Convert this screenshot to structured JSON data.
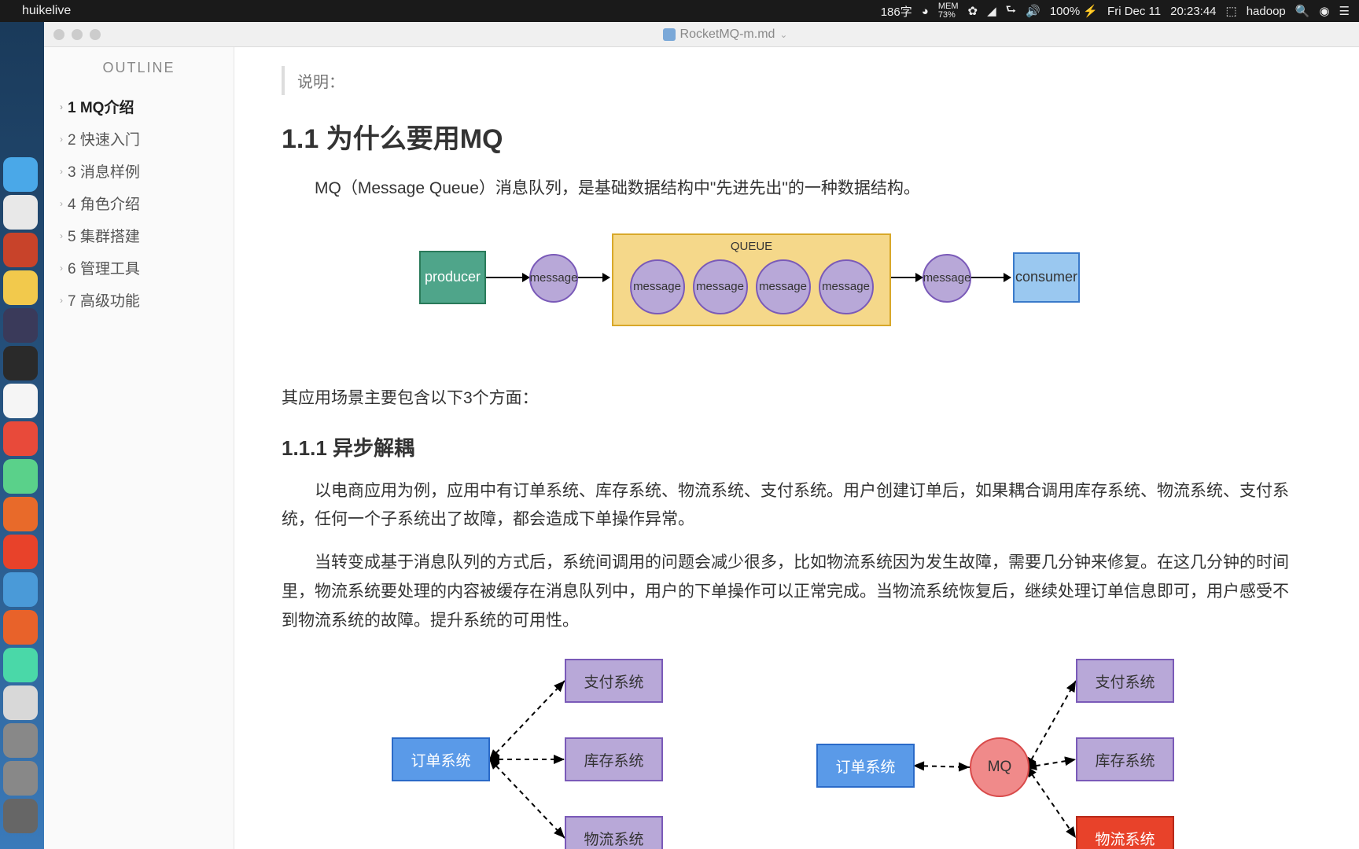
{
  "menubar": {
    "app_name": "huikelive",
    "word_count": "186字",
    "mem_label": "MEM",
    "mem_value": "73%",
    "battery": "100%",
    "date": "Fri Dec 11",
    "time": "20:23:44",
    "user": "hadoop"
  },
  "window": {
    "filename": "RocketMQ-m.md"
  },
  "sidebar": {
    "title": "OUTLINE",
    "items": [
      {
        "label": "1 MQ介绍",
        "active": true
      },
      {
        "label": "2 快速入门",
        "active": false
      },
      {
        "label": "3 消息样例",
        "active": false
      },
      {
        "label": "4 角色介绍",
        "active": false
      },
      {
        "label": "5 集群搭建",
        "active": false
      },
      {
        "label": "6 管理工具",
        "active": false
      },
      {
        "label": "7 高级功能",
        "active": false
      }
    ]
  },
  "content": {
    "quote": "说明：",
    "h2": "1.1 为什么要用MQ",
    "p1": "MQ（Message Queue）消息队列，是基础数据结构中\"先进先出\"的一种数据结构。",
    "p2": "其应用场景主要包含以下3个方面：",
    "h3": "1.1.1 异步解耦",
    "p3": "以电商应用为例，应用中有订单系统、库存系统、物流系统、支付系统。用户创建订单后，如果耦合调用库存系统、物流系统、支付系统，任何一个子系统出了故障，都会造成下单操作异常。",
    "p4": "当转变成基于消息队列的方式后，系统间调用的问题会减少很多，比如物流系统因为发生故障，需要几分钟来修复。在这几分钟的时间里，物流系统要处理的内容被缓存在消息队列中，用户的下单操作可以正常完成。当物流系统恢复后，继续处理订单信息即可，用户感受不到物流系统的故障。提升系统的可用性。"
  },
  "dock_colors": [
    "#4aa8e8",
    "#e8e8e8",
    "#c8432a",
    "#f2c94c",
    "#3a3a5a",
    "#2a2a2a",
    "#f5f5f5",
    "#e84a3a",
    "#5ad18a",
    "#e86a2a",
    "#e8422a",
    "#4a9ad8",
    "#e8622a",
    "#4ad8a8",
    "#d8d8d8",
    "#888",
    "#888",
    "#666"
  ],
  "queue": {
    "producer": {
      "label": "producer",
      "bg": "#4fa58a",
      "border": "#2a7a5a",
      "color": "#fff"
    },
    "consumer": {
      "label": "consumer",
      "bg": "#9ac8f0",
      "border": "#3a7aca"
    },
    "message": {
      "label": "message",
      "bg": "#b8a8d8",
      "border": "#7a5ab8"
    },
    "queue_label": "QUEUE",
    "queue_bg": "#f5d88a",
    "queue_border": "#d8a82a",
    "inner_count": 4
  },
  "systems": {
    "left": {
      "order": {
        "label": "订单系统",
        "bg": "#5a9ae8",
        "border": "#2a6ac8",
        "color": "#fff"
      },
      "nodes": [
        {
          "label": "支付系统",
          "bg": "#b8a8d8",
          "border": "#7a5ab8"
        },
        {
          "label": "库存系统",
          "bg": "#b8a8d8",
          "border": "#7a5ab8"
        },
        {
          "label": "物流系统",
          "bg": "#b8a8d8",
          "border": "#7a5ab8"
        }
      ]
    },
    "right": {
      "order": {
        "label": "订单系统",
        "bg": "#5a9ae8",
        "border": "#2a6ac8",
        "color": "#fff"
      },
      "mq": {
        "label": "MQ",
        "bg": "#f08a8a",
        "border": "#d84a4a"
      },
      "nodes": [
        {
          "label": "支付系统",
          "bg": "#b8a8d8",
          "border": "#7a5ab8"
        },
        {
          "label": "库存系统",
          "bg": "#b8a8d8",
          "border": "#7a5ab8"
        },
        {
          "label": "物流系统",
          "bg": "#e8422a",
          "border": "#b82a1a",
          "color": "#fff"
        }
      ]
    }
  }
}
